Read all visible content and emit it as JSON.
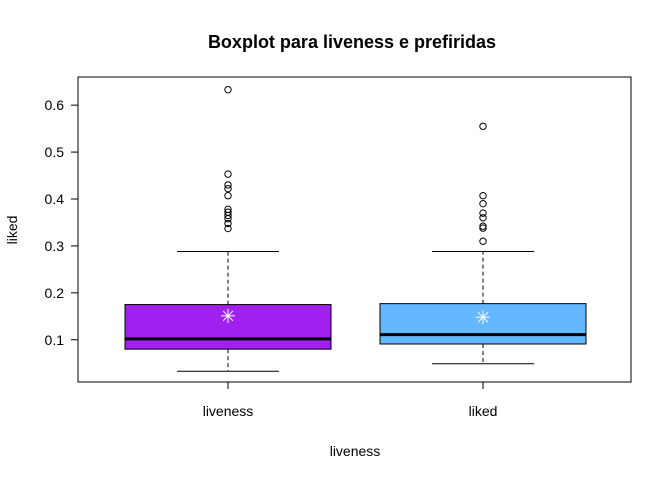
{
  "chart_data": {
    "type": "boxplot",
    "title": "Boxplot para  liveness e prefiridas",
    "xlabel": "liveness",
    "ylabel": "liked",
    "ylim": [
      0.01,
      0.66
    ],
    "y_ticks": [
      0.1,
      0.2,
      0.3,
      0.4,
      0.5,
      0.6
    ],
    "grid": false,
    "legend": "none",
    "categories": [
      "liveness",
      "liked"
    ],
    "series": [
      {
        "category": "liveness",
        "color": "#a020f0",
        "min": 0.033,
        "q1": 0.08,
        "median": 0.102,
        "q3": 0.175,
        "max": 0.288,
        "mean": 0.151,
        "outliers": [
          0.337,
          0.348,
          0.358,
          0.365,
          0.372,
          0.378,
          0.407,
          0.422,
          0.43,
          0.453,
          0.633
        ]
      },
      {
        "category": "liked",
        "color": "#63b8ff",
        "min": 0.049,
        "q1": 0.091,
        "median": 0.111,
        "q3": 0.177,
        "max": 0.288,
        "mean": 0.148,
        "outliers": [
          0.31,
          0.338,
          0.342,
          0.36,
          0.37,
          0.39,
          0.407,
          0.555
        ]
      }
    ]
  }
}
